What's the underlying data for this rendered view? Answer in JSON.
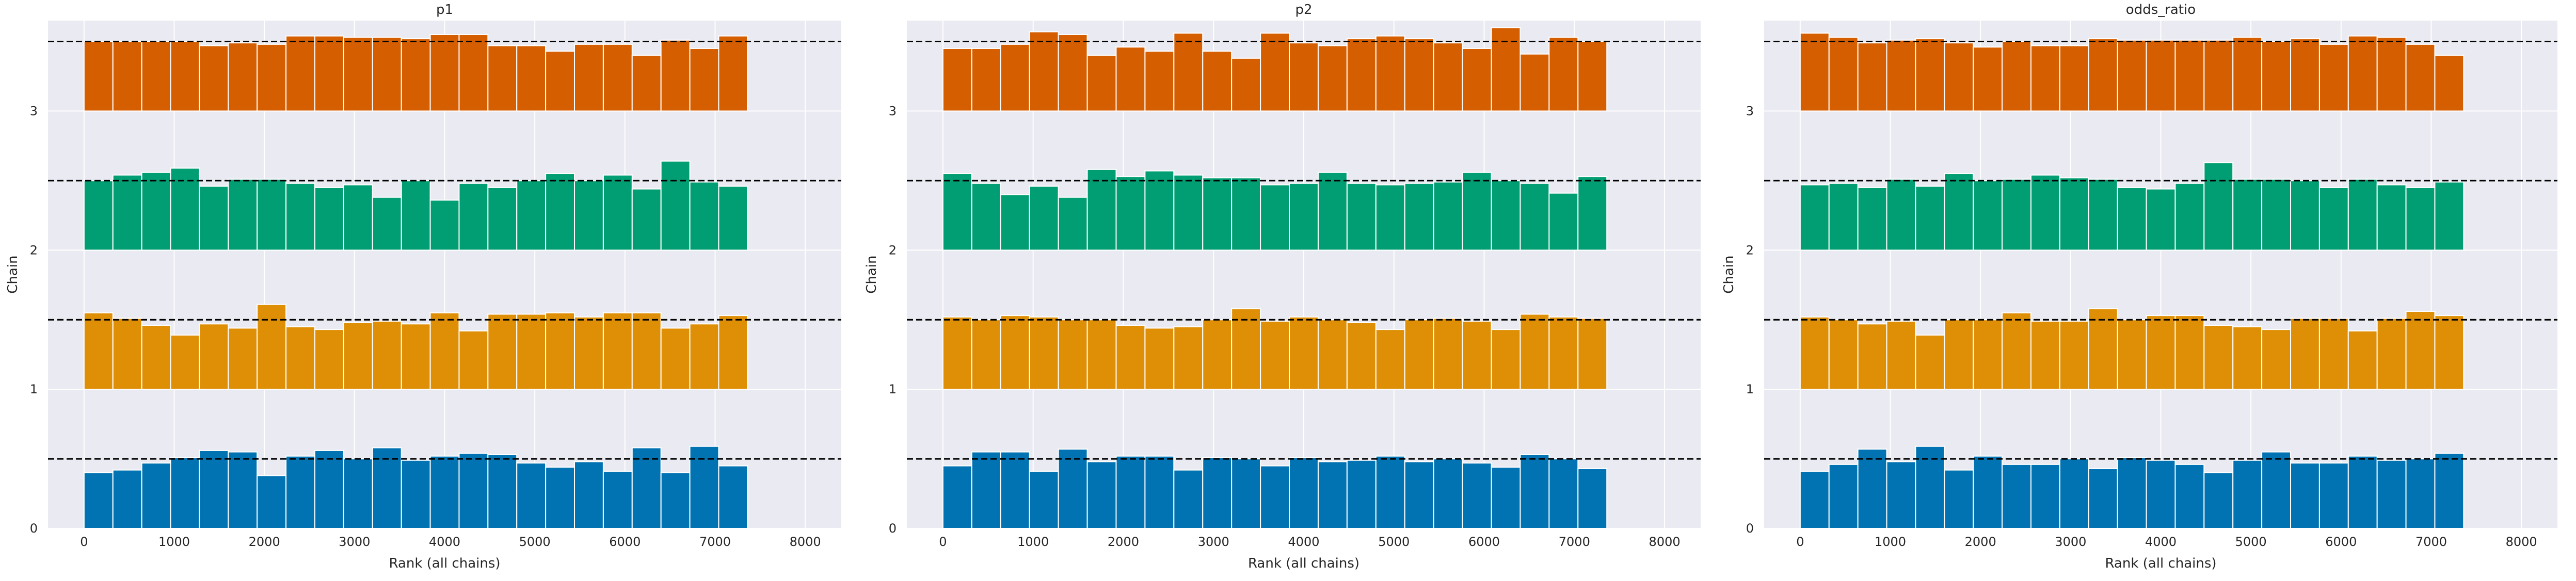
{
  "chart_data": [
    {
      "type": "bar",
      "title": "p1",
      "xlabel": "Rank (all chains)",
      "ylabel": "Chain",
      "xlim": [
        -400,
        8400
      ],
      "ylim": [
        0,
        3.65
      ],
      "xticks": [
        0,
        1000,
        2000,
        3000,
        4000,
        5000,
        6000,
        7000,
        8000
      ],
      "yticks": [
        0,
        1,
        2,
        3
      ],
      "grid": true,
      "bin_width": 320,
      "bin_start": 0,
      "reference_offset": 0.5,
      "series": [
        {
          "chain": 0,
          "color": "#0173b2",
          "values": [
            0.4,
            0.42,
            0.47,
            0.51,
            0.56,
            0.55,
            0.38,
            0.52,
            0.56,
            0.5,
            0.58,
            0.49,
            0.52,
            0.54,
            0.53,
            0.47,
            0.44,
            0.48,
            0.41,
            0.58,
            0.4,
            0.59,
            0.45
          ]
        },
        {
          "chain": 1,
          "color": "#de8f05",
          "values": [
            0.55,
            0.51,
            0.46,
            0.39,
            0.47,
            0.44,
            0.61,
            0.45,
            0.43,
            0.48,
            0.49,
            0.47,
            0.55,
            0.42,
            0.54,
            0.54,
            0.55,
            0.52,
            0.55,
            0.55,
            0.44,
            0.47,
            0.53
          ]
        },
        {
          "chain": 2,
          "color": "#029e73",
          "values": [
            0.5,
            0.54,
            0.56,
            0.59,
            0.46,
            0.51,
            0.51,
            0.48,
            0.45,
            0.47,
            0.38,
            0.5,
            0.36,
            0.48,
            0.45,
            0.5,
            0.55,
            0.5,
            0.54,
            0.44,
            0.64,
            0.49,
            0.46
          ]
        },
        {
          "chain": 3,
          "color": "#d55e00",
          "values": [
            0.5,
            0.5,
            0.5,
            0.5,
            0.47,
            0.49,
            0.48,
            0.54,
            0.54,
            0.53,
            0.53,
            0.52,
            0.55,
            0.55,
            0.47,
            0.47,
            0.43,
            0.48,
            0.48,
            0.4,
            0.51,
            0.45,
            0.54
          ]
        }
      ]
    },
    {
      "type": "bar",
      "title": "p2",
      "xlabel": "Rank (all chains)",
      "ylabel": "Chain",
      "xlim": [
        -400,
        8400
      ],
      "ylim": [
        0,
        3.65
      ],
      "xticks": [
        0,
        1000,
        2000,
        3000,
        4000,
        5000,
        6000,
        7000,
        8000
      ],
      "yticks": [
        0,
        1,
        2,
        3
      ],
      "grid": true,
      "bin_width": 320,
      "bin_start": 0,
      "reference_offset": 0.5,
      "series": [
        {
          "chain": 0,
          "color": "#0173b2",
          "values": [
            0.45,
            0.55,
            0.55,
            0.41,
            0.57,
            0.48,
            0.52,
            0.52,
            0.42,
            0.51,
            0.5,
            0.45,
            0.51,
            0.48,
            0.49,
            0.52,
            0.48,
            0.5,
            0.47,
            0.44,
            0.53,
            0.5,
            0.43
          ]
        },
        {
          "chain": 1,
          "color": "#de8f05",
          "values": [
            0.52,
            0.5,
            0.53,
            0.52,
            0.5,
            0.5,
            0.46,
            0.44,
            0.45,
            0.5,
            0.58,
            0.49,
            0.52,
            0.5,
            0.48,
            0.43,
            0.5,
            0.51,
            0.49,
            0.43,
            0.54,
            0.52,
            0.51
          ]
        },
        {
          "chain": 2,
          "color": "#029e73",
          "values": [
            0.55,
            0.48,
            0.4,
            0.46,
            0.38,
            0.58,
            0.53,
            0.57,
            0.54,
            0.52,
            0.52,
            0.47,
            0.48,
            0.56,
            0.48,
            0.47,
            0.48,
            0.49,
            0.56,
            0.5,
            0.48,
            0.41,
            0.53
          ]
        },
        {
          "chain": 3,
          "color": "#d55e00",
          "values": [
            0.45,
            0.45,
            0.48,
            0.57,
            0.55,
            0.4,
            0.46,
            0.43,
            0.56,
            0.43,
            0.38,
            0.56,
            0.49,
            0.47,
            0.52,
            0.54,
            0.52,
            0.49,
            0.45,
            0.6,
            0.41,
            0.53,
            0.5
          ]
        }
      ]
    },
    {
      "type": "bar",
      "title": "odds_ratio",
      "xlabel": "Rank (all chains)",
      "ylabel": "Chain",
      "xlim": [
        -400,
        8400
      ],
      "ylim": [
        0,
        3.65
      ],
      "xticks": [
        0,
        1000,
        2000,
        3000,
        4000,
        5000,
        6000,
        7000,
        8000
      ],
      "yticks": [
        0,
        1,
        2,
        3
      ],
      "grid": true,
      "bin_width": 320,
      "bin_start": 0,
      "reference_offset": 0.5,
      "series": [
        {
          "chain": 0,
          "color": "#0173b2",
          "values": [
            0.41,
            0.46,
            0.57,
            0.48,
            0.59,
            0.42,
            0.52,
            0.46,
            0.46,
            0.5,
            0.43,
            0.51,
            0.49,
            0.46,
            0.4,
            0.49,
            0.55,
            0.47,
            0.47,
            0.52,
            0.49,
            0.5,
            0.54
          ]
        },
        {
          "chain": 1,
          "color": "#de8f05",
          "values": [
            0.52,
            0.5,
            0.47,
            0.49,
            0.39,
            0.5,
            0.5,
            0.55,
            0.49,
            0.49,
            0.58,
            0.5,
            0.53,
            0.53,
            0.46,
            0.45,
            0.43,
            0.51,
            0.51,
            0.42,
            0.51,
            0.56,
            0.53
          ]
        },
        {
          "chain": 2,
          "color": "#029e73",
          "values": [
            0.47,
            0.48,
            0.45,
            0.51,
            0.46,
            0.55,
            0.5,
            0.51,
            0.54,
            0.52,
            0.51,
            0.45,
            0.44,
            0.48,
            0.63,
            0.51,
            0.51,
            0.5,
            0.45,
            0.51,
            0.47,
            0.45,
            0.49
          ]
        },
        {
          "chain": 3,
          "color": "#d55e00",
          "values": [
            0.56,
            0.53,
            0.49,
            0.51,
            0.52,
            0.49,
            0.46,
            0.5,
            0.47,
            0.47,
            0.52,
            0.51,
            0.51,
            0.51,
            0.51,
            0.53,
            0.5,
            0.52,
            0.48,
            0.54,
            0.53,
            0.48,
            0.4
          ]
        }
      ]
    }
  ]
}
